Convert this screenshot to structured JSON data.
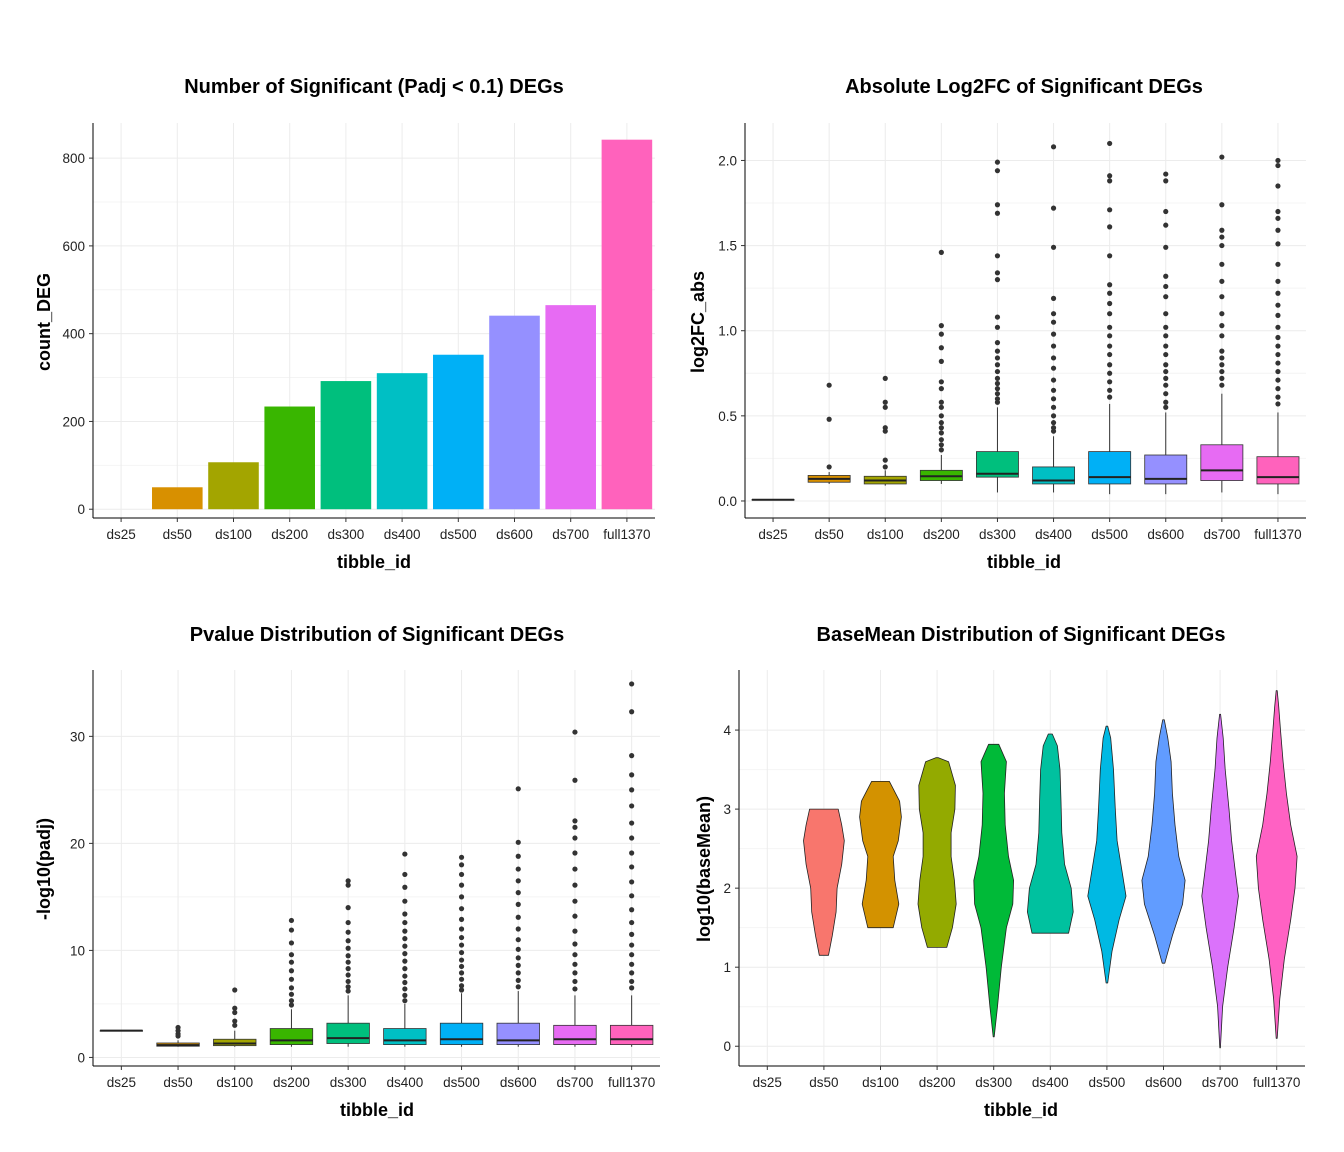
{
  "colors": {
    "barpalette": [
      "#F8766D",
      "#DB8E00",
      "#AEA200",
      "#64B200",
      "#00BD5C",
      "#00C1A7",
      "#00BADE",
      "#00A6FF",
      "#B385FF",
      "#EF67EB",
      "#FF63B6"
    ],
    "ten": [
      "#F8766D",
      "#D89000",
      "#A3A500",
      "#39B600",
      "#00BF7D",
      "#00BFC4",
      "#00B0F6",
      "#9590FF",
      "#E76BF3",
      "#FF62BC"
    ],
    "violin": [
      "#F8766D",
      "#D39200",
      "#93AA00",
      "#00BA38",
      "#00C19F",
      "#00B9E3",
      "#619CFF",
      "#DB72FB",
      "#FF61C3"
    ]
  },
  "chart_data": [
    {
      "id": "deg-count",
      "type": "bar",
      "title": "Number of Significant (Padj < 0.1) DEGs",
      "xlabel": "tibble_id",
      "ylabel": "count_DEG",
      "categories": [
        "ds25",
        "ds50",
        "ds100",
        "ds200",
        "ds300",
        "ds400",
        "ds500",
        "ds600",
        "ds700",
        "full1370"
      ],
      "values": [
        0,
        50,
        107,
        234,
        292,
        310,
        352,
        441,
        465,
        842
      ],
      "ylim": [
        -20,
        880
      ],
      "yticks": [
        0,
        200,
        400,
        600,
        800
      ],
      "grid": true
    },
    {
      "id": "log2fc",
      "type": "box",
      "title": "Absolute Log2FC of Significant DEGs",
      "xlabel": "tibble_id",
      "ylabel": "log2FC_abs",
      "categories": [
        "ds25",
        "ds50",
        "ds100",
        "ds200",
        "ds300",
        "ds400",
        "ds500",
        "ds600",
        "ds700",
        "full1370"
      ],
      "ylim": [
        -0.1,
        2.22
      ],
      "yticks": [
        0.0,
        0.5,
        1.0,
        1.5,
        2.0
      ],
      "ytick_labels": [
        "0.0",
        "0.5",
        "1.0",
        "1.5",
        "2.0"
      ],
      "grid": true,
      "boxes": [
        {
          "q1": 0.005,
          "median": 0.007,
          "q3": 0.009,
          "lo": 0.005,
          "hi": 0.009,
          "outliers": []
        },
        {
          "q1": 0.11,
          "median": 0.13,
          "q3": 0.15,
          "lo": 0.1,
          "hi": 0.17,
          "outliers": [
            0.68,
            0.48,
            0.2
          ]
        },
        {
          "q1": 0.1,
          "median": 0.12,
          "q3": 0.145,
          "lo": 0.09,
          "hi": 0.18,
          "outliers": [
            0.72,
            0.58,
            0.55,
            0.43,
            0.41,
            0.24,
            0.2
          ]
        },
        {
          "q1": 0.12,
          "median": 0.145,
          "q3": 0.18,
          "lo": 0.1,
          "hi": 0.27,
          "outliers": [
            1.46,
            1.03,
            0.98,
            0.9,
            0.82,
            0.7,
            0.66,
            0.58,
            0.55,
            0.5,
            0.46,
            0.43,
            0.4,
            0.36,
            0.33,
            0.3
          ]
        },
        {
          "q1": 0.14,
          "median": 0.16,
          "q3": 0.29,
          "lo": 0.05,
          "hi": 0.55,
          "outliers": [
            1.99,
            1.94,
            1.74,
            1.69,
            1.44,
            1.34,
            1.3,
            1.08,
            1.02,
            0.93,
            0.88,
            0.84,
            0.8,
            0.76,
            0.72,
            0.69,
            0.66,
            0.63,
            0.6,
            0.58
          ]
        },
        {
          "q1": 0.1,
          "median": 0.12,
          "q3": 0.2,
          "lo": 0.05,
          "hi": 0.38,
          "outliers": [
            2.08,
            1.72,
            1.49,
            1.19,
            1.1,
            1.05,
            0.98,
            0.91,
            0.84,
            0.78,
            0.71,
            0.65,
            0.6,
            0.55,
            0.5,
            0.46,
            0.43,
            0.41
          ]
        },
        {
          "q1": 0.1,
          "median": 0.14,
          "q3": 0.29,
          "lo": 0.04,
          "hi": 0.57,
          "outliers": [
            2.1,
            1.91,
            1.88,
            1.71,
            1.61,
            1.44,
            1.27,
            1.22,
            1.16,
            1.1,
            1.02,
            0.97,
            0.91,
            0.86,
            0.8,
            0.75,
            0.7,
            0.65,
            0.61
          ]
        },
        {
          "q1": 0.1,
          "median": 0.13,
          "q3": 0.27,
          "lo": 0.04,
          "hi": 0.52,
          "outliers": [
            1.92,
            1.88,
            1.7,
            1.62,
            1.49,
            1.32,
            1.26,
            1.2,
            1.1,
            1.02,
            0.97,
            0.91,
            0.86,
            0.8,
            0.76,
            0.72,
            0.68,
            0.63,
            0.58,
            0.55
          ]
        },
        {
          "q1": 0.12,
          "median": 0.18,
          "q3": 0.33,
          "lo": 0.05,
          "hi": 0.63,
          "outliers": [
            2.02,
            1.74,
            1.59,
            1.55,
            1.5,
            1.39,
            1.29,
            1.2,
            1.1,
            1.03,
            0.97,
            0.88,
            0.84,
            0.8,
            0.76,
            0.72,
            0.68
          ]
        },
        {
          "q1": 0.1,
          "median": 0.14,
          "q3": 0.26,
          "lo": 0.04,
          "hi": 0.52,
          "outliers": [
            2.0,
            1.97,
            1.85,
            1.7,
            1.66,
            1.59,
            1.51,
            1.39,
            1.29,
            1.22,
            1.15,
            1.09,
            1.02,
            0.96,
            0.91,
            0.86,
            0.81,
            0.76,
            0.71,
            0.66,
            0.61,
            0.57
          ]
        }
      ]
    },
    {
      "id": "pvalue",
      "type": "box",
      "title": "Pvalue Distribution of Significant DEGs",
      "xlabel": "tibble_id",
      "ylabel": "-log10(padj)",
      "categories": [
        "ds25",
        "ds50",
        "ds100",
        "ds200",
        "ds300",
        "ds400",
        "ds500",
        "ds600",
        "ds700",
        "full1370"
      ],
      "ylim": [
        -0.8,
        36.2
      ],
      "yticks": [
        0,
        10,
        20,
        30
      ],
      "ytick_labels": [
        "0",
        "10",
        "20",
        "30"
      ],
      "grid": true,
      "boxes": [
        {
          "q1": 2.5,
          "median": 2.5,
          "q3": 2.5,
          "lo": 2.5,
          "hi": 2.5,
          "outliers": []
        },
        {
          "q1": 1.05,
          "median": 1.15,
          "q3": 1.35,
          "lo": 1.0,
          "hi": 1.6,
          "outliers": [
            2.8,
            2.5,
            2.2,
            2.0
          ]
        },
        {
          "q1": 1.1,
          "median": 1.3,
          "q3": 1.7,
          "lo": 1.0,
          "hi": 2.5,
          "outliers": [
            6.3,
            4.6,
            4.2,
            3.4,
            3.0
          ]
        },
        {
          "q1": 1.2,
          "median": 1.6,
          "q3": 2.7,
          "lo": 1.0,
          "hi": 4.5,
          "outliers": [
            12.8,
            11.9,
            10.7,
            9.6,
            8.9,
            8.1,
            7.3,
            6.5,
            5.9,
            5.3,
            4.9
          ]
        },
        {
          "q1": 1.3,
          "median": 1.8,
          "q3": 3.2,
          "lo": 1.0,
          "hi": 5.8,
          "outliers": [
            16.5,
            16.1,
            14.0,
            12.6,
            11.7,
            10.9,
            10.2,
            9.5,
            8.9,
            8.3,
            7.7,
            7.1,
            6.6,
            6.2
          ]
        },
        {
          "q1": 1.2,
          "median": 1.6,
          "q3": 2.7,
          "lo": 1.0,
          "hi": 5.0,
          "outliers": [
            19.0,
            17.1,
            15.9,
            14.6,
            13.4,
            12.6,
            11.8,
            11.1,
            10.4,
            9.7,
            9.0,
            8.3,
            7.6,
            7.0,
            6.4,
            5.8,
            5.3
          ]
        },
        {
          "q1": 1.2,
          "median": 1.7,
          "q3": 3.2,
          "lo": 1.0,
          "hi": 6.0,
          "outliers": [
            18.7,
            18.0,
            17.1,
            16.1,
            15.0,
            13.9,
            12.9,
            12.0,
            11.2,
            10.5,
            9.8,
            9.1,
            8.5,
            7.9,
            7.3,
            6.7,
            6.3
          ]
        },
        {
          "q1": 1.2,
          "median": 1.6,
          "q3": 3.2,
          "lo": 1.0,
          "hi": 6.2,
          "outliers": [
            25.1,
            20.1,
            18.8,
            17.6,
            16.5,
            15.4,
            14.3,
            13.1,
            12.0,
            11.0,
            10.1,
            9.3,
            8.6,
            7.9,
            7.2,
            6.6
          ]
        },
        {
          "q1": 1.2,
          "median": 1.7,
          "q3": 3.0,
          "lo": 1.0,
          "hi": 5.8,
          "outliers": [
            30.4,
            25.9,
            22.1,
            21.5,
            20.5,
            19.1,
            17.6,
            16.1,
            14.6,
            13.2,
            11.8,
            10.6,
            9.6,
            8.7,
            7.9,
            7.1,
            6.4
          ]
        },
        {
          "q1": 1.2,
          "median": 1.7,
          "q3": 3.0,
          "lo": 1.0,
          "hi": 5.8,
          "outliers": [
            34.9,
            32.3,
            28.2,
            26.4,
            25.0,
            23.5,
            21.9,
            20.5,
            19.1,
            17.8,
            16.4,
            15.1,
            13.8,
            12.6,
            11.5,
            10.5,
            9.6,
            8.7,
            7.9,
            7.1,
            6.5
          ]
        }
      ]
    },
    {
      "id": "basemean",
      "type": "violin",
      "title": "BaseMean Distribution of Significant DEGs",
      "xlabel": "tibble_id",
      "ylabel": "log10(baseMean)",
      "categories": [
        "ds25",
        "ds50",
        "ds100",
        "ds200",
        "ds300",
        "ds400",
        "ds500",
        "ds600",
        "ds700",
        "full1370"
      ],
      "ylim": [
        -0.25,
        4.76
      ],
      "yticks": [
        0,
        1,
        2,
        3,
        4
      ],
      "ytick_labels": [
        "0",
        "1",
        "2",
        "3",
        "4"
      ],
      "grid": true,
      "violins": [
        null,
        {
          "profile": [
            [
              1.15,
              0.18
            ],
            [
              1.4,
              0.33
            ],
            [
              1.7,
              0.48
            ],
            [
              2.0,
              0.52
            ],
            [
              2.3,
              0.7
            ],
            [
              2.6,
              0.8
            ],
            [
              2.8,
              0.7
            ],
            [
              3.0,
              0.56
            ]
          ]
        },
        {
          "profile": [
            [
              1.5,
              0.5
            ],
            [
              1.8,
              0.72
            ],
            [
              2.1,
              0.56
            ],
            [
              2.4,
              0.5
            ],
            [
              2.6,
              0.7
            ],
            [
              2.9,
              0.82
            ],
            [
              3.1,
              0.75
            ],
            [
              3.35,
              0.35
            ]
          ]
        },
        {
          "profile": [
            [
              1.25,
              0.38
            ],
            [
              1.5,
              0.6
            ],
            [
              1.8,
              0.75
            ],
            [
              2.1,
              0.68
            ],
            [
              2.4,
              0.55
            ],
            [
              2.7,
              0.55
            ],
            [
              3.0,
              0.7
            ],
            [
              3.3,
              0.72
            ],
            [
              3.6,
              0.45
            ],
            [
              3.65,
              0.05
            ]
          ]
        },
        {
          "profile": [
            [
              0.12,
              0.02
            ],
            [
              0.5,
              0.15
            ],
            [
              1.0,
              0.3
            ],
            [
              1.5,
              0.5
            ],
            [
              1.8,
              0.75
            ],
            [
              2.1,
              0.78
            ],
            [
              2.4,
              0.58
            ],
            [
              2.8,
              0.45
            ],
            [
              3.2,
              0.42
            ],
            [
              3.6,
              0.5
            ],
            [
              3.82,
              0.2
            ]
          ]
        },
        {
          "profile": [
            [
              1.43,
              0.72
            ],
            [
              1.7,
              0.9
            ],
            [
              2.0,
              0.82
            ],
            [
              2.3,
              0.56
            ],
            [
              2.7,
              0.45
            ],
            [
              3.1,
              0.42
            ],
            [
              3.5,
              0.38
            ],
            [
              3.8,
              0.28
            ],
            [
              3.95,
              0.08
            ]
          ]
        },
        {
          "profile": [
            [
              0.8,
              0.03
            ],
            [
              1.2,
              0.2
            ],
            [
              1.6,
              0.48
            ],
            [
              1.9,
              0.75
            ],
            [
              2.2,
              0.6
            ],
            [
              2.6,
              0.4
            ],
            [
              3.0,
              0.33
            ],
            [
              3.5,
              0.26
            ],
            [
              3.9,
              0.15
            ],
            [
              4.05,
              0.03
            ]
          ]
        },
        {
          "profile": [
            [
              1.05,
              0.05
            ],
            [
              1.4,
              0.35
            ],
            [
              1.8,
              0.75
            ],
            [
              2.1,
              0.85
            ],
            [
              2.4,
              0.6
            ],
            [
              2.8,
              0.45
            ],
            [
              3.2,
              0.35
            ],
            [
              3.6,
              0.3
            ],
            [
              3.9,
              0.17
            ],
            [
              4.13,
              0.03
            ]
          ]
        },
        {
          "profile": [
            [
              -0.02,
              0.01
            ],
            [
              0.5,
              0.1
            ],
            [
              1.0,
              0.3
            ],
            [
              1.5,
              0.55
            ],
            [
              1.9,
              0.72
            ],
            [
              2.2,
              0.6
            ],
            [
              2.6,
              0.45
            ],
            [
              3.0,
              0.35
            ],
            [
              3.5,
              0.2
            ],
            [
              3.9,
              0.12
            ],
            [
              4.2,
              0.02
            ]
          ]
        },
        {
          "profile": [
            [
              0.1,
              0.02
            ],
            [
              0.6,
              0.12
            ],
            [
              1.1,
              0.3
            ],
            [
              1.6,
              0.55
            ],
            [
              2.0,
              0.72
            ],
            [
              2.4,
              0.8
            ],
            [
              2.8,
              0.55
            ],
            [
              3.2,
              0.38
            ],
            [
              3.6,
              0.25
            ],
            [
              4.0,
              0.15
            ],
            [
              4.3,
              0.08
            ],
            [
              4.5,
              0.02
            ]
          ]
        }
      ]
    }
  ]
}
